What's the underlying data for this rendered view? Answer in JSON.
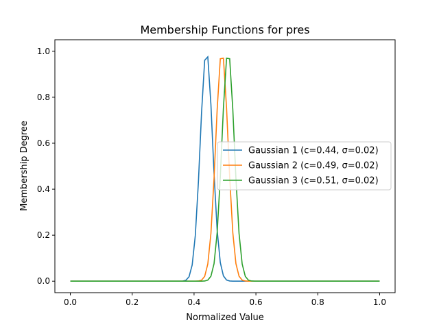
{
  "chart_data": {
    "type": "line",
    "title": "Membership Functions for pres",
    "xlabel": "Normalized Value",
    "ylabel": "Membership Degree",
    "xlim": [
      -0.05,
      1.05
    ],
    "ylim": [
      -0.05,
      1.05
    ],
    "xticks": [
      "0.0",
      "0.2",
      "0.4",
      "0.6",
      "0.8",
      "1.0"
    ],
    "yticks": [
      "0.0",
      "0.2",
      "0.4",
      "0.6",
      "0.8",
      "1.0"
    ],
    "grid": false,
    "legend_position": "center-right",
    "x_range": [
      0,
      1
    ],
    "num_points": 100,
    "series": [
      {
        "name": "Gaussian 1 (c=0.44, σ=0.02)",
        "c": 0.44,
        "sigma": 0.02,
        "color": "#1f77b4"
      },
      {
        "name": "Gaussian 2 (c=0.49, σ=0.02)",
        "c": 0.49,
        "sigma": 0.02,
        "color": "#ff7f0e"
      },
      {
        "name": "Gaussian 3 (c=0.51, σ=0.02)",
        "c": 0.51,
        "sigma": 0.02,
        "color": "#2ca02c"
      }
    ]
  }
}
